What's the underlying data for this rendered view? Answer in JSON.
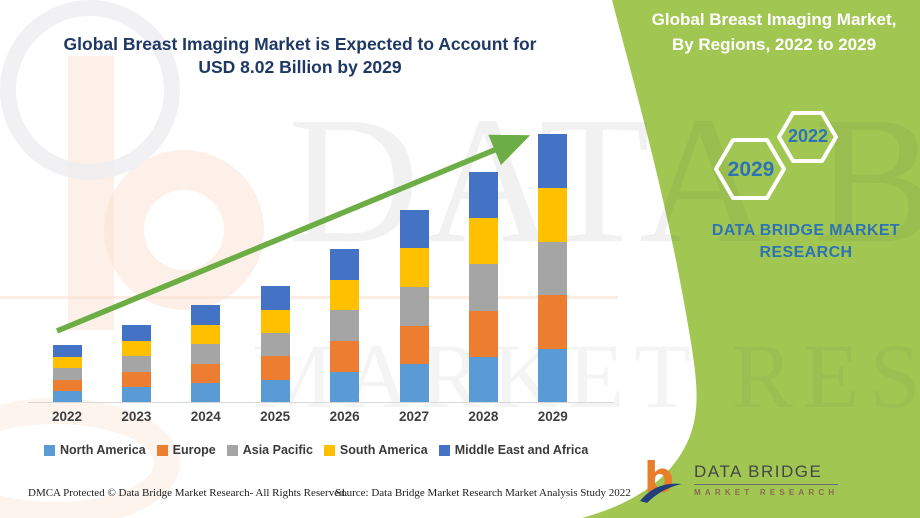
{
  "banner": {
    "line1": "Global Breast Imaging Market is Expected to Account for",
    "line2": "USD 8.02 Billion by 2029"
  },
  "panel": {
    "heading_line1": "Global Breast Imaging Market,",
    "heading_line2": "By Regions, 2022 to 2029",
    "hexagon_left_year": "2029",
    "hexagon_right_year": "2022",
    "brand_text": "DATA BRIDGE MARKET RESEARCH"
  },
  "logo": {
    "name": "DATA BRIDGE",
    "tagline": "MARKET RESEARCH"
  },
  "watermark": {
    "line1": "DATA BRIDGE",
    "line2": "MARKET RESEARCH"
  },
  "footer": {
    "left": "DMCA Protected © Data Bridge Market Research- All Rights Reserved.",
    "source": "Source: Data Bridge Market Research Market Analysis Study 2022"
  },
  "colors": {
    "green_background": "#a1c752",
    "trend_arrow": "#6cae45",
    "title_blue": "#1f3864",
    "brand_blue": "#2e74b5",
    "axis_line": "#d8d8d8"
  },
  "chart_data": {
    "type": "bar",
    "stacked": true,
    "title": "Global Breast Imaging Market is Expected to Account for USD 8.02 Billion by 2029",
    "unit": "USD Billion",
    "categories": [
      "2022",
      "2023",
      "2024",
      "2025",
      "2026",
      "2027",
      "2028",
      "2029"
    ],
    "series": [
      {
        "name": "North America",
        "color": "#5b9bd5",
        "values": [
          0.344,
          0.464,
          0.582,
          0.696,
          0.92,
          1.152,
          1.378,
          1.604
        ]
      },
      {
        "name": "Europe",
        "color": "#ed7d31",
        "values": [
          0.344,
          0.464,
          0.582,
          0.696,
          0.92,
          1.152,
          1.378,
          1.604
        ]
      },
      {
        "name": "Asia Pacific",
        "color": "#a5a5a5",
        "values": [
          0.344,
          0.464,
          0.582,
          0.696,
          0.92,
          1.152,
          1.378,
          1.604
        ]
      },
      {
        "name": "South America",
        "color": "#ffc000",
        "values": [
          0.344,
          0.464,
          0.582,
          0.696,
          0.92,
          1.152,
          1.378,
          1.604
        ]
      },
      {
        "name": "Middle East and Africa",
        "color": "#4472c4",
        "values": [
          0.344,
          0.464,
          0.582,
          0.696,
          0.92,
          1.152,
          1.378,
          1.604
        ]
      }
    ],
    "totals": [
      1.72,
      2.32,
      2.91,
      3.48,
      4.6,
      5.76,
      6.89,
      8.02
    ],
    "ylim": [
      0,
      8.02
    ],
    "grid": false,
    "xlabel": "",
    "ylabel": "",
    "legend_position": "bottom",
    "annotations": [
      "upward trend arrow from 2022 to 2029"
    ]
  }
}
